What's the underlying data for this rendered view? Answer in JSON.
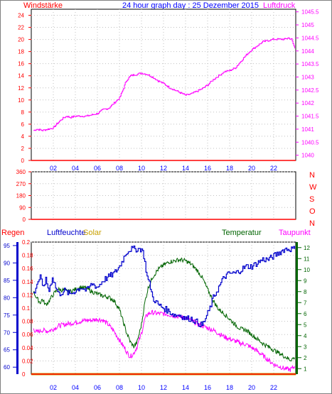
{
  "colors": {
    "wind": "#ff0000",
    "pressure": "#ff00ff",
    "title": "#0000ff",
    "direction": "#ff0000",
    "rain": "#ff0000",
    "humidity": "#0000cc",
    "solar": "#c8a000",
    "temperature": "#006400",
    "dewpoint": "#ff00ff",
    "grid": "#c0c0c0",
    "axis": "#000000"
  },
  "title": "24 hour graph day : 25 Dezember 2015",
  "x_ticks": [
    "02",
    "04",
    "06",
    "08",
    "10",
    "12",
    "14",
    "16",
    "18",
    "20",
    "22"
  ],
  "panel1": {
    "left_label": "Windstärke",
    "right_label": "Luftdruck",
    "left_ticks": [
      "0",
      "2",
      "4",
      "6",
      "8",
      "10",
      "12",
      "14",
      "16",
      "18",
      "20",
      "22",
      "24"
    ],
    "right_ticks": [
      "1040",
      "1040.5",
      "1041",
      "1041.5",
      "1042",
      "1042.5",
      "1043",
      "1043.5",
      "1044",
      "1044.5",
      "1045",
      "1045.5"
    ]
  },
  "panel2": {
    "left_ticks": [
      "0",
      "90",
      "180",
      "270",
      "360"
    ],
    "right_labels": [
      "N",
      "W",
      "S",
      "O",
      "N"
    ]
  },
  "panel3": {
    "label_rain": "Regen",
    "label_humidity": "Luftfeuchte",
    "label_solar": "Solar",
    "label_temperature": "Temperatur",
    "label_dewpoint": "Taupunkt",
    "rain_ticks": [
      "0",
      "0.02",
      "0.04",
      "0.06",
      "0.08",
      "0.1",
      "0.12",
      "0.14",
      "0.16",
      "0.18",
      "0.2"
    ],
    "humidity_ticks": [
      "60",
      "65",
      "70",
      "75",
      "80",
      "85",
      "90",
      "95"
    ],
    "temp_ticks": [
      "1",
      "2",
      "3",
      "4",
      "5",
      "6",
      "7",
      "8",
      "9",
      "10",
      "11",
      "12"
    ]
  },
  "chart_data": [
    {
      "type": "line",
      "title": "24 hour graph day : 25 Dezember 2015",
      "x_unit": "hour",
      "xlim": [
        0,
        24
      ],
      "series": [
        {
          "name": "Windstärke",
          "axis": "left",
          "ylim": [
            0,
            25
          ],
          "points": [
            [
              0,
              0
            ],
            [
              24,
              0
            ]
          ]
        },
        {
          "name": "Luftdruck",
          "axis": "right",
          "ylim": [
            1039.8,
            1045.6
          ],
          "points": [
            [
              0.2,
              1040.95
            ],
            [
              0.5,
              1041.0
            ],
            [
              1.0,
              1040.95
            ],
            [
              1.5,
              1041.0
            ],
            [
              2.0,
              1041.05
            ],
            [
              2.3,
              1041.2
            ],
            [
              2.8,
              1041.4
            ],
            [
              3.2,
              1041.5
            ],
            [
              3.5,
              1041.45
            ],
            [
              4.0,
              1041.5
            ],
            [
              4.5,
              1041.5
            ],
            [
              5.0,
              1041.5
            ],
            [
              5.5,
              1041.55
            ],
            [
              6.0,
              1041.6
            ],
            [
              6.5,
              1041.75
            ],
            [
              7.0,
              1041.8
            ],
            [
              7.5,
              1042.0
            ],
            [
              8.0,
              1042.2
            ],
            [
              8.3,
              1042.5
            ],
            [
              8.6,
              1042.85
            ],
            [
              9.0,
              1043.05
            ],
            [
              9.5,
              1043.1
            ],
            [
              10.0,
              1043.15
            ],
            [
              10.5,
              1043.1
            ],
            [
              11.0,
              1043.0
            ],
            [
              11.5,
              1042.85
            ],
            [
              12.0,
              1042.75
            ],
            [
              12.5,
              1042.6
            ],
            [
              13.0,
              1042.5
            ],
            [
              13.5,
              1042.4
            ],
            [
              14.0,
              1042.3
            ],
            [
              14.5,
              1042.35
            ],
            [
              15.0,
              1042.45
            ],
            [
              15.5,
              1042.55
            ],
            [
              16.0,
              1042.7
            ],
            [
              16.5,
              1042.9
            ],
            [
              17.0,
              1043.05
            ],
            [
              17.5,
              1043.2
            ],
            [
              18.0,
              1043.25
            ],
            [
              18.5,
              1043.35
            ],
            [
              19.0,
              1043.6
            ],
            [
              19.5,
              1043.85
            ],
            [
              20.0,
              1044.05
            ],
            [
              20.5,
              1044.2
            ],
            [
              21.0,
              1044.35
            ],
            [
              21.5,
              1044.4
            ],
            [
              22.0,
              1044.45
            ],
            [
              22.5,
              1044.45
            ],
            [
              23.0,
              1044.45
            ],
            [
              23.3,
              1044.5
            ],
            [
              23.6,
              1044.45
            ],
            [
              23.9,
              1044.1
            ]
          ]
        }
      ]
    },
    {
      "type": "scatter",
      "title": "",
      "x_unit": "hour",
      "xlim": [
        0,
        24
      ],
      "series": [
        {
          "name": "Windrichtung",
          "ylim": [
            0,
            360
          ],
          "points": [
            [
              0,
              0
            ],
            [
              24,
              0
            ]
          ]
        }
      ]
    },
    {
      "type": "line",
      "title": "",
      "x_unit": "hour",
      "xlim": [
        0,
        24
      ],
      "series": [
        {
          "name": "Regen",
          "axis": "rain",
          "ylim": [
            0,
            0.2
          ],
          "points": [
            [
              0,
              0
            ],
            [
              24,
              0
            ]
          ]
        },
        {
          "name": "Luftfeuchte",
          "axis": "humidity",
          "ylim": [
            58,
            96
          ],
          "points": [
            [
              0.2,
              81
            ],
            [
              0.5,
              84
            ],
            [
              0.8,
              86
            ],
            [
              1.0,
              83
            ],
            [
              1.3,
              85
            ],
            [
              1.6,
              82
            ],
            [
              1.9,
              86
            ],
            [
              2.2,
              83
            ],
            [
              2.5,
              81
            ],
            [
              3.0,
              82
            ],
            [
              3.5,
              81
            ],
            [
              4.0,
              82
            ],
            [
              4.5,
              83
            ],
            [
              5.0,
              82
            ],
            [
              5.5,
              84
            ],
            [
              6.0,
              83
            ],
            [
              6.5,
              85
            ],
            [
              7.0,
              86
            ],
            [
              7.5,
              87
            ],
            [
              8.0,
              89
            ],
            [
              8.3,
              91
            ],
            [
              8.6,
              93
            ],
            [
              9.0,
              94
            ],
            [
              9.5,
              94
            ],
            [
              10.0,
              94
            ],
            [
              10.2,
              92
            ],
            [
              10.5,
              86
            ],
            [
              10.8,
              83
            ],
            [
              11.0,
              80
            ],
            [
              11.5,
              78
            ],
            [
              12.0,
              77
            ],
            [
              12.5,
              76
            ],
            [
              13.0,
              75
            ],
            [
              13.5,
              75
            ],
            [
              14.0,
              74
            ],
            [
              14.5,
              74
            ],
            [
              15.0,
              73
            ],
            [
              15.5,
              72
            ],
            [
              15.8,
              74
            ],
            [
              16.2,
              77
            ],
            [
              16.5,
              80
            ],
            [
              17.0,
              83
            ],
            [
              17.5,
              86
            ],
            [
              18.0,
              87
            ],
            [
              18.5,
              87
            ],
            [
              19.0,
              88
            ],
            [
              19.5,
              89
            ],
            [
              20.0,
              89
            ],
            [
              20.5,
              90
            ],
            [
              21.0,
              91
            ],
            [
              21.5,
              91
            ],
            [
              22.0,
              92
            ],
            [
              22.5,
              93
            ],
            [
              23.0,
              94
            ],
            [
              23.9,
              94
            ]
          ]
        },
        {
          "name": "Solar",
          "axis": "rain",
          "ylim": [
            0,
            0.2
          ],
          "points": [
            [
              0,
              0
            ],
            [
              24,
              0
            ]
          ]
        },
        {
          "name": "Temperatur",
          "axis": "temp",
          "ylim": [
            0.5,
            12.5
          ],
          "points": [
            [
              0.2,
              8.0
            ],
            [
              0.5,
              7.4
            ],
            [
              0.8,
              7.0
            ],
            [
              1.0,
              7.3
            ],
            [
              1.3,
              6.8
            ],
            [
              1.6,
              7.1
            ],
            [
              1.9,
              7.6
            ],
            [
              2.2,
              8.0
            ],
            [
              2.5,
              8.2
            ],
            [
              3.0,
              8.1
            ],
            [
              3.5,
              8.0
            ],
            [
              4.0,
              8.2
            ],
            [
              4.5,
              8.4
            ],
            [
              5.0,
              8.3
            ],
            [
              5.5,
              8.0
            ],
            [
              6.0,
              7.8
            ],
            [
              6.5,
              7.6
            ],
            [
              7.0,
              7.5
            ],
            [
              7.5,
              7.2
            ],
            [
              8.0,
              6.4
            ],
            [
              8.3,
              5.4
            ],
            [
              8.6,
              4.4
            ],
            [
              9.0,
              3.4
            ],
            [
              9.3,
              3.0
            ],
            [
              9.6,
              3.4
            ],
            [
              10.0,
              5.0
            ],
            [
              10.3,
              7.0
            ],
            [
              10.6,
              8.3
            ],
            [
              11.0,
              9.3
            ],
            [
              11.5,
              10.0
            ],
            [
              12.0,
              10.4
            ],
            [
              12.5,
              10.7
            ],
            [
              13.0,
              10.8
            ],
            [
              13.5,
              10.9
            ],
            [
              14.0,
              10.8
            ],
            [
              14.5,
              10.5
            ],
            [
              15.0,
              10.0
            ],
            [
              15.5,
              9.3
            ],
            [
              16.0,
              8.2
            ],
            [
              16.5,
              7.2
            ],
            [
              17.0,
              6.4
            ],
            [
              17.5,
              6.0
            ],
            [
              18.0,
              5.5
            ],
            [
              18.5,
              5.0
            ],
            [
              19.0,
              4.6
            ],
            [
              19.5,
              4.5
            ],
            [
              20.0,
              4.1
            ],
            [
              20.5,
              3.7
            ],
            [
              21.0,
              3.3
            ],
            [
              21.5,
              3.0
            ],
            [
              22.0,
              2.7
            ],
            [
              22.5,
              2.4
            ],
            [
              23.0,
              2.1
            ],
            [
              23.5,
              1.8
            ],
            [
              23.9,
              2.0
            ]
          ]
        },
        {
          "name": "Taupunkt",
          "axis": "temp",
          "ylim": [
            0.5,
            12.5
          ],
          "points": [
            [
              0.2,
              4.6
            ],
            [
              0.5,
              4.3
            ],
            [
              1.0,
              4.5
            ],
            [
              1.5,
              4.4
            ],
            [
              2.0,
              4.6
            ],
            [
              2.5,
              4.9
            ],
            [
              3.0,
              5.0
            ],
            [
              3.5,
              5.1
            ],
            [
              4.0,
              5.2
            ],
            [
              4.5,
              5.3
            ],
            [
              5.0,
              5.4
            ],
            [
              5.5,
              5.4
            ],
            [
              6.0,
              5.5
            ],
            [
              6.5,
              5.4
            ],
            [
              7.0,
              5.0
            ],
            [
              7.5,
              4.4
            ],
            [
              8.0,
              3.6
            ],
            [
              8.5,
              2.8
            ],
            [
              8.8,
              2.3
            ],
            [
              9.0,
              2.1
            ],
            [
              9.3,
              2.4
            ],
            [
              9.6,
              3.0
            ],
            [
              10.0,
              4.2
            ],
            [
              10.3,
              5.5
            ],
            [
              10.6,
              6.0
            ],
            [
              11.0,
              6.1
            ],
            [
              11.5,
              6.0
            ],
            [
              12.0,
              6.0
            ],
            [
              12.5,
              5.9
            ],
            [
              13.0,
              5.8
            ],
            [
              13.5,
              5.7
            ],
            [
              14.0,
              5.6
            ],
            [
              14.5,
              5.4
            ],
            [
              15.0,
              5.1
            ],
            [
              15.5,
              4.9
            ],
            [
              16.0,
              4.7
            ],
            [
              16.5,
              4.5
            ],
            [
              17.0,
              4.2
            ],
            [
              17.5,
              3.9
            ],
            [
              18.0,
              3.7
            ],
            [
              18.5,
              3.5
            ],
            [
              19.0,
              3.3
            ],
            [
              19.5,
              3.2
            ],
            [
              20.0,
              2.9
            ],
            [
              20.5,
              2.6
            ],
            [
              21.0,
              2.2
            ],
            [
              21.5,
              1.8
            ],
            [
              22.0,
              1.4
            ],
            [
              22.5,
              1.2
            ],
            [
              23.0,
              1.0
            ],
            [
              23.5,
              0.9
            ],
            [
              23.9,
              1.2
            ]
          ]
        }
      ]
    }
  ]
}
